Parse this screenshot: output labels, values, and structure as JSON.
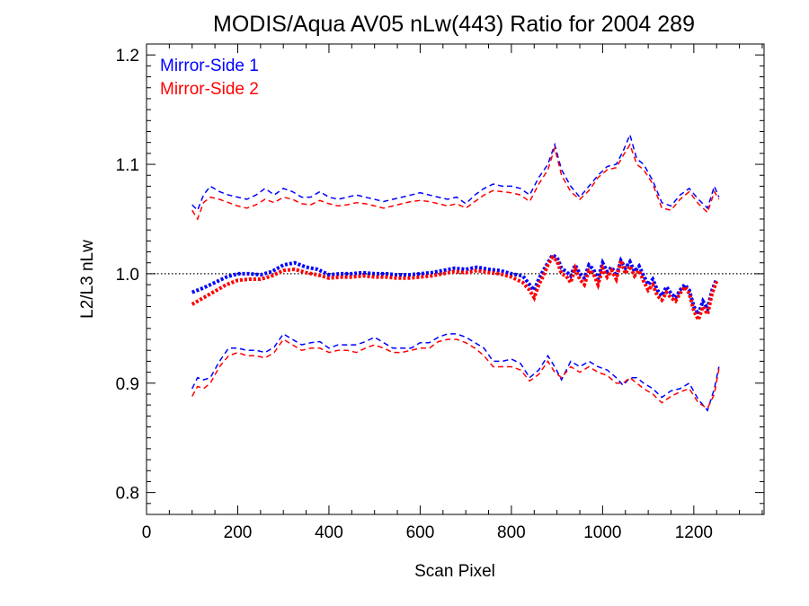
{
  "chart_data": {
    "type": "line",
    "title": "MODIS/Aqua AV05 nLw(443) Ratio for 2004 289",
    "xlabel": "Scan Pixel",
    "ylabel": "L2/L3 nLw",
    "xlim": [
      0,
      1354
    ],
    "ylim": [
      0.78,
      1.21
    ],
    "xticks": [
      0,
      200,
      400,
      600,
      800,
      1000,
      1200
    ],
    "xtick_labels": [
      "0",
      "200",
      "400",
      "600",
      "800",
      "1000",
      "1200"
    ],
    "yticks": [
      0.8,
      0.9,
      1.0,
      1.1,
      1.2
    ],
    "ytick_labels": [
      "0.8",
      "0.9",
      "1.0",
      "1.1",
      "1.2"
    ],
    "reference_line": 1.0,
    "legend_position": "top-left",
    "colors": {
      "side1": "#0000ff",
      "side2": "#ff0000"
    },
    "series": [
      {
        "name": "Mirror-Side 1",
        "color": "#0000ff",
        "line_style": "dotted-thick",
        "x": [
          100,
          125,
          150,
          175,
          200,
          225,
          250,
          275,
          300,
          325,
          350,
          375,
          400,
          425,
          450,
          475,
          500,
          525,
          550,
          575,
          600,
          625,
          650,
          675,
          700,
          725,
          750,
          775,
          800,
          825,
          840,
          850,
          860,
          870,
          880,
          890,
          900,
          910,
          920,
          930,
          940,
          950,
          960,
          970,
          980,
          990,
          1000,
          1010,
          1020,
          1030,
          1040,
          1050,
          1060,
          1070,
          1080,
          1090,
          1100,
          1110,
          1120,
          1130,
          1140,
          1150,
          1160,
          1170,
          1180,
          1190,
          1200,
          1210,
          1220,
          1230,
          1240,
          1250
        ],
        "y": [
          0.983,
          0.987,
          0.992,
          0.997,
          1.0,
          1.0,
          0.999,
          1.002,
          1.008,
          1.01,
          1.006,
          1.004,
          0.999,
          1.0,
          1.0,
          1.001,
          1.0,
          1.0,
          0.999,
          0.999,
          1.0,
          1.001,
          1.003,
          1.005,
          1.004,
          1.006,
          1.004,
          1.003,
          1.0,
          0.998,
          0.99,
          0.985,
          0.995,
          1.003,
          1.01,
          1.017,
          1.015,
          1.005,
          1.002,
          0.998,
          1.008,
          1.0,
          0.996,
          1.008,
          1.004,
          0.995,
          1.01,
          1.002,
          1.006,
          0.998,
          1.012,
          1.005,
          1.011,
          1.002,
          1.007,
          0.998,
          0.99,
          0.995,
          0.985,
          0.98,
          0.988,
          0.982,
          0.978,
          0.985,
          0.99,
          0.985,
          0.97,
          0.963,
          0.975,
          0.968,
          0.985,
          0.995
        ]
      },
      {
        "name": "Mirror-Side 2",
        "color": "#ff0000",
        "line_style": "dotted-thick",
        "x": [
          100,
          125,
          150,
          175,
          200,
          225,
          250,
          275,
          300,
          325,
          350,
          375,
          400,
          425,
          450,
          475,
          500,
          525,
          550,
          575,
          600,
          625,
          650,
          675,
          700,
          725,
          750,
          775,
          800,
          825,
          840,
          850,
          860,
          870,
          880,
          890,
          900,
          910,
          920,
          930,
          940,
          950,
          960,
          970,
          980,
          990,
          1000,
          1010,
          1020,
          1030,
          1040,
          1050,
          1060,
          1070,
          1080,
          1090,
          1100,
          1110,
          1120,
          1130,
          1140,
          1150,
          1160,
          1170,
          1180,
          1190,
          1200,
          1210,
          1220,
          1230,
          1240,
          1250
        ],
        "y": [
          0.972,
          0.978,
          0.984,
          0.99,
          0.994,
          0.995,
          0.995,
          0.998,
          1.003,
          1.004,
          1.001,
          0.999,
          0.996,
          0.997,
          0.997,
          0.998,
          0.997,
          0.997,
          0.996,
          0.996,
          0.997,
          0.998,
          1.0,
          1.002,
          1.001,
          1.003,
          1.001,
          1.0,
          0.997,
          0.992,
          0.985,
          0.978,
          0.99,
          0.998,
          1.008,
          1.015,
          1.012,
          1.0,
          0.998,
          0.992,
          1.005,
          0.995,
          0.99,
          1.003,
          1.0,
          0.99,
          1.005,
          0.997,
          1.003,
          0.995,
          1.012,
          1.0,
          1.007,
          0.998,
          1.003,
          0.993,
          0.985,
          0.99,
          0.98,
          0.976,
          0.983,
          0.978,
          0.975,
          0.982,
          0.988,
          0.982,
          0.966,
          0.958,
          0.97,
          0.963,
          0.982,
          0.993
        ]
      },
      {
        "name": "",
        "color": "#0000ff",
        "line_style": "dashed",
        "x": [
          100,
          112,
          125,
          140,
          160,
          180,
          200,
          220,
          240,
          260,
          280,
          300,
          320,
          340,
          360,
          380,
          400,
          420,
          440,
          460,
          480,
          500,
          520,
          540,
          560,
          580,
          600,
          620,
          640,
          660,
          680,
          700,
          720,
          740,
          760,
          780,
          800,
          820,
          840,
          860,
          880,
          895,
          910,
          930,
          950,
          970,
          990,
          1010,
          1030,
          1045,
          1060,
          1075,
          1090,
          1110,
          1130,
          1150,
          1170,
          1190,
          1210,
          1230,
          1245,
          1255
        ],
        "y": [
          1.063,
          1.058,
          1.072,
          1.08,
          1.075,
          1.072,
          1.07,
          1.068,
          1.072,
          1.078,
          1.072,
          1.078,
          1.075,
          1.07,
          1.07,
          1.075,
          1.07,
          1.068,
          1.07,
          1.072,
          1.07,
          1.068,
          1.066,
          1.068,
          1.07,
          1.072,
          1.074,
          1.072,
          1.07,
          1.068,
          1.07,
          1.064,
          1.072,
          1.078,
          1.082,
          1.08,
          1.08,
          1.078,
          1.072,
          1.088,
          1.1,
          1.118,
          1.095,
          1.08,
          1.07,
          1.08,
          1.09,
          1.098,
          1.1,
          1.112,
          1.127,
          1.105,
          1.1,
          1.085,
          1.065,
          1.062,
          1.072,
          1.078,
          1.068,
          1.06,
          1.08,
          1.07
        ]
      },
      {
        "name": "",
        "color": "#ff0000",
        "line_style": "dashed",
        "x": [
          100,
          112,
          125,
          140,
          160,
          180,
          200,
          220,
          240,
          260,
          280,
          300,
          320,
          340,
          360,
          380,
          400,
          420,
          440,
          460,
          480,
          500,
          520,
          540,
          560,
          580,
          600,
          620,
          640,
          660,
          680,
          700,
          720,
          740,
          760,
          780,
          800,
          820,
          840,
          860,
          880,
          895,
          910,
          930,
          950,
          970,
          990,
          1010,
          1030,
          1045,
          1060,
          1075,
          1090,
          1110,
          1130,
          1150,
          1170,
          1190,
          1210,
          1230,
          1245,
          1255
        ],
        "y": [
          1.058,
          1.05,
          1.065,
          1.07,
          1.068,
          1.065,
          1.062,
          1.06,
          1.063,
          1.068,
          1.065,
          1.07,
          1.068,
          1.064,
          1.063,
          1.067,
          1.064,
          1.062,
          1.063,
          1.065,
          1.064,
          1.062,
          1.06,
          1.062,
          1.064,
          1.066,
          1.067,
          1.066,
          1.064,
          1.062,
          1.064,
          1.06,
          1.066,
          1.072,
          1.076,
          1.075,
          1.074,
          1.072,
          1.066,
          1.082,
          1.095,
          1.115,
          1.09,
          1.075,
          1.068,
          1.076,
          1.088,
          1.095,
          1.097,
          1.108,
          1.118,
          1.1,
          1.095,
          1.082,
          1.06,
          1.058,
          1.068,
          1.075,
          1.064,
          1.056,
          1.075,
          1.068
        ]
      },
      {
        "name": "",
        "color": "#0000ff",
        "line_style": "dashed",
        "x": [
          100,
          112,
          125,
          140,
          160,
          180,
          200,
          220,
          240,
          260,
          280,
          300,
          320,
          340,
          360,
          380,
          400,
          420,
          440,
          460,
          480,
          500,
          520,
          540,
          560,
          580,
          600,
          620,
          640,
          660,
          680,
          700,
          720,
          740,
          760,
          780,
          800,
          820,
          840,
          860,
          880,
          895,
          910,
          930,
          950,
          970,
          990,
          1010,
          1030,
          1045,
          1060,
          1075,
          1090,
          1110,
          1130,
          1150,
          1170,
          1190,
          1210,
          1230,
          1245,
          1255
        ],
        "y": [
          0.895,
          0.905,
          0.903,
          0.905,
          0.92,
          0.932,
          0.932,
          0.93,
          0.93,
          0.928,
          0.933,
          0.945,
          0.94,
          0.935,
          0.937,
          0.938,
          0.932,
          0.935,
          0.935,
          0.935,
          0.938,
          0.942,
          0.937,
          0.932,
          0.932,
          0.932,
          0.937,
          0.937,
          0.942,
          0.945,
          0.945,
          0.942,
          0.937,
          0.932,
          0.92,
          0.92,
          0.922,
          0.918,
          0.905,
          0.912,
          0.925,
          0.915,
          0.903,
          0.92,
          0.915,
          0.92,
          0.915,
          0.912,
          0.905,
          0.898,
          0.905,
          0.905,
          0.9,
          0.895,
          0.887,
          0.893,
          0.895,
          0.9,
          0.885,
          0.875,
          0.895,
          0.915
        ]
      },
      {
        "name": "",
        "color": "#ff0000",
        "line_style": "dashed",
        "x": [
          100,
          112,
          125,
          140,
          160,
          180,
          200,
          220,
          240,
          260,
          280,
          300,
          320,
          340,
          360,
          380,
          400,
          420,
          440,
          460,
          480,
          500,
          520,
          540,
          560,
          580,
          600,
          620,
          640,
          660,
          680,
          700,
          720,
          740,
          760,
          780,
          800,
          820,
          840,
          860,
          880,
          895,
          910,
          930,
          950,
          970,
          990,
          1010,
          1030,
          1045,
          1060,
          1075,
          1090,
          1110,
          1130,
          1150,
          1170,
          1190,
          1210,
          1230,
          1245,
          1255
        ],
        "y": [
          0.888,
          0.897,
          0.895,
          0.9,
          0.915,
          0.925,
          0.928,
          0.925,
          0.925,
          0.923,
          0.928,
          0.94,
          0.935,
          0.93,
          0.932,
          0.932,
          0.928,
          0.93,
          0.93,
          0.928,
          0.932,
          0.935,
          0.932,
          0.928,
          0.928,
          0.93,
          0.932,
          0.932,
          0.938,
          0.94,
          0.94,
          0.937,
          0.932,
          0.925,
          0.915,
          0.915,
          0.915,
          0.912,
          0.902,
          0.908,
          0.92,
          0.91,
          0.905,
          0.915,
          0.91,
          0.915,
          0.91,
          0.907,
          0.9,
          0.9,
          0.905,
          0.9,
          0.895,
          0.89,
          0.882,
          0.888,
          0.892,
          0.895,
          0.882,
          0.877,
          0.89,
          0.913
        ]
      }
    ]
  }
}
